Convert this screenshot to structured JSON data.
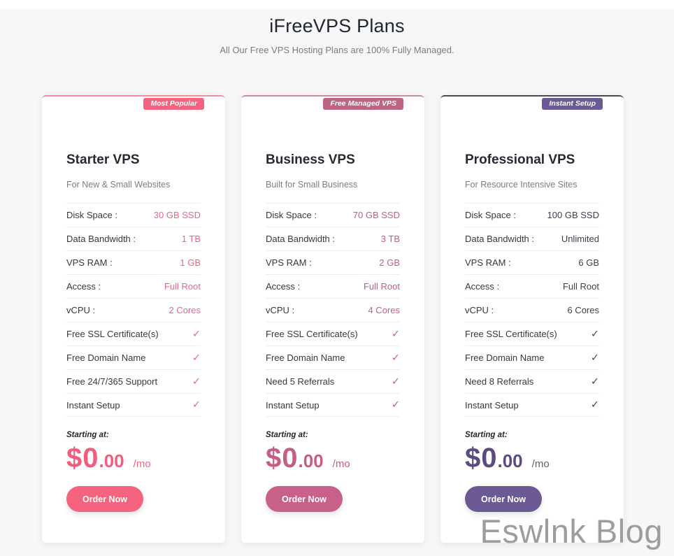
{
  "page": {
    "title": "iFreeVPS Plans",
    "subtitle": "All Our Free VPS Hosting Plans are 100% Fully Managed.",
    "watermark": "Eswlnk Blog",
    "background_color": "#f7f7f8"
  },
  "plans": [
    {
      "badge": "Most Popular",
      "name": "Starter VPS",
      "tagline": "For New & Small Websites",
      "specs": [
        {
          "label": "Disk Space :",
          "value": "30 GB SSD",
          "type": "text"
        },
        {
          "label": "Data Bandwidth :",
          "value": "1 TB",
          "type": "text"
        },
        {
          "label": "VPS RAM :",
          "value": "1 GB",
          "type": "text"
        },
        {
          "label": "Access :",
          "value": "Full Root",
          "type": "text"
        },
        {
          "label": "vCPU :",
          "value": "2 Cores",
          "type": "text"
        },
        {
          "label": "Free SSL Certificate(s)",
          "value": "✓",
          "type": "check"
        },
        {
          "label": "Free Domain Name",
          "value": "✓",
          "type": "check"
        },
        {
          "label": "Free 24/7/365 Support",
          "value": "✓",
          "type": "check"
        },
        {
          "label": "Instant Setup",
          "value": "✓",
          "type": "check"
        }
      ],
      "starting_at": "Starting at:",
      "price": {
        "symbol": "$",
        "dollars": "0",
        "cents": ".00",
        "period": "/mo"
      },
      "order_button": "Order Now",
      "theme": {
        "border_top": "#f28aa0",
        "badge_bg": "#f4647f",
        "value_color": "#ee6583",
        "check_color": "#ee6583",
        "price_color": "#f25d7d",
        "period_color": "#ee6583",
        "button_bg": "#f4647f"
      }
    },
    {
      "badge": "Free Managed VPS",
      "name": "Business VPS",
      "tagline": "Built for Small Business",
      "specs": [
        {
          "label": "Disk Space :",
          "value": "70 GB SSD",
          "type": "text"
        },
        {
          "label": "Data Bandwidth :",
          "value": "3 TB",
          "type": "text"
        },
        {
          "label": "VPS RAM :",
          "value": "2 GB",
          "type": "text"
        },
        {
          "label": "Access :",
          "value": "Full Root",
          "type": "text"
        },
        {
          "label": "vCPU :",
          "value": "4 Cores",
          "type": "text"
        },
        {
          "label": "Free SSL Certificate(s)",
          "value": "✓",
          "type": "check"
        },
        {
          "label": "Free Domain Name",
          "value": "✓",
          "type": "check"
        },
        {
          "label": "Need 5 Referrals",
          "value": "✓",
          "type": "check"
        },
        {
          "label": "Instant Setup",
          "value": "✓",
          "type": "check"
        }
      ],
      "starting_at": "Starting at:",
      "price": {
        "symbol": "$",
        "dollars": "0",
        "cents": ".00",
        "period": "/mo"
      },
      "order_button": "Order Now",
      "theme": {
        "border_top": "#cc8aa2",
        "badge_bg": "#bd6384",
        "value_color": "#c25e85",
        "check_color": "#c25e85",
        "price_color": "#c55d85",
        "period_color": "#c25e85",
        "button_bg": "#c7618a"
      }
    },
    {
      "badge": "Instant Setup",
      "name": "Professional VPS",
      "tagline": "For Resource Intensive Sites",
      "specs": [
        {
          "label": "Disk Space :",
          "value": "100 GB SSD",
          "type": "text"
        },
        {
          "label": "Data Bandwidth :",
          "value": "Unlimited",
          "type": "text"
        },
        {
          "label": "VPS RAM :",
          "value": "6 GB",
          "type": "text"
        },
        {
          "label": "Access :",
          "value": "Full Root",
          "type": "text"
        },
        {
          "label": "vCPU :",
          "value": "6 Cores",
          "type": "text"
        },
        {
          "label": "Free SSL Certificate(s)",
          "value": "✓",
          "type": "check"
        },
        {
          "label": "Free Domain Name",
          "value": "✓",
          "type": "check"
        },
        {
          "label": "Need 8 Referrals",
          "value": "✓",
          "type": "check"
        },
        {
          "label": "Instant Setup",
          "value": "✓",
          "type": "check"
        }
      ],
      "starting_at": "Starting at:",
      "price": {
        "symbol": "$",
        "dollars": "0",
        "cents": ".00",
        "period": "/mo"
      },
      "order_button": "Order Now",
      "theme": {
        "border_top": "#454a55",
        "badge_bg": "#6b5a93",
        "value_color": "#3a414e",
        "check_color": "#4a4a52",
        "price_color": "#5c4a80",
        "period_color": "#5f6368",
        "button_bg": "#6b5a93"
      }
    }
  ]
}
